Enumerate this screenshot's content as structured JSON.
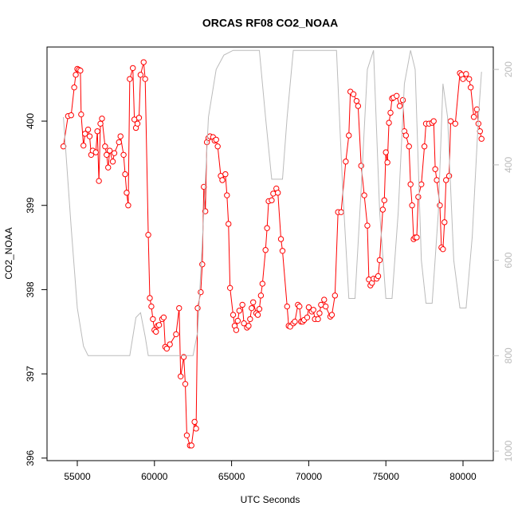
{
  "chart_data": {
    "type": "line",
    "title": "ORCAS RF08 CO2_NOAA",
    "xlabel": "UTC Seconds",
    "ylabel": "CO2_NOAA",
    "xlim": [
      53037,
      81963
    ],
    "xticks": [
      55000,
      60000,
      65000,
      70000,
      75000,
      80000
    ],
    "ylim": [
      395.97,
      400.88
    ],
    "yticks": [
      396,
      397,
      398,
      399,
      400
    ],
    "y2lim": [
      1020,
      153
    ],
    "y2ticks": [
      200,
      400,
      600,
      800,
      1000
    ],
    "y2color": "#bbbbbb",
    "series": [
      {
        "color": "#ff0000",
        "markers": true,
        "x": [
          54100,
          54400,
          54600,
          54800,
          54900,
          55000,
          55100,
          55200,
          55250,
          55400,
          55500,
          55700,
          55800,
          55900,
          56000,
          56200,
          56300,
          56400,
          56500,
          56600,
          56800,
          56900,
          57000,
          57100,
          57300,
          57400,
          57700,
          57800,
          58000,
          58100,
          58200,
          58300,
          58400,
          58600,
          58700,
          58800,
          58900,
          59000,
          59100,
          59300,
          59400,
          59600,
          59700,
          59800,
          59900,
          60000,
          60100,
          60200,
          60300,
          60500,
          60600,
          60700,
          60800,
          61000,
          61400,
          61600,
          61700,
          61900,
          62000,
          62100,
          62300,
          62400,
          62600,
          62700,
          62800,
          63000,
          63100,
          63200,
          63300,
          63400,
          63500,
          63600,
          63800,
          63900,
          64000,
          64100,
          64300,
          64400,
          64600,
          64700,
          64800,
          64900,
          65100,
          65200,
          65300,
          65400,
          65500,
          65700,
          65800,
          66000,
          66100,
          66200,
          66300,
          66400,
          66600,
          66700,
          66800,
          66900,
          67000,
          67200,
          67300,
          67400,
          67600,
          67700,
          67900,
          68000,
          68200,
          68300,
          68600,
          68700,
          68800,
          69000,
          69100,
          69300,
          69400,
          69500,
          69600,
          69700,
          69900,
          70000,
          70200,
          70300,
          70400,
          70600,
          70700,
          70800,
          71000,
          71100,
          71400,
          71500,
          71700,
          71900,
          72100,
          72400,
          72600,
          72700,
          72900,
          73100,
          73200,
          73400,
          73600,
          73800,
          73900,
          74000,
          74100,
          74200,
          74400,
          74500,
          74600,
          74800,
          74900,
          75000,
          75100,
          75200,
          75300,
          75400,
          75500,
          75700,
          75900,
          76100,
          76200,
          76300,
          76500,
          76600,
          76700,
          76800,
          76900,
          77000,
          77100,
          77300,
          77500,
          77600,
          77800,
          78000,
          78100,
          78200,
          78300,
          78500,
          78600,
          78700,
          78800,
          78900,
          79100,
          79200,
          79500,
          79800,
          79900,
          80000,
          80200,
          80400,
          80500,
          80700,
          80900,
          81000,
          81100,
          81200
        ],
        "values": [
          399.7,
          400.06,
          400.07,
          400.4,
          400.55,
          400.62,
          400.61,
          400.6,
          400.08,
          399.71,
          399.85,
          399.9,
          399.82,
          399.6,
          399.65,
          399.63,
          399.88,
          399.29,
          399.97,
          400.03,
          399.7,
          399.6,
          399.45,
          399.65,
          399.52,
          399.62,
          399.75,
          399.82,
          399.6,
          399.37,
          399.15,
          399.0,
          400.5,
          400.63,
          400.02,
          399.92,
          399.97,
          400.04,
          400.55,
          400.7,
          400.5,
          398.65,
          397.9,
          397.8,
          397.65,
          397.52,
          397.5,
          397.57,
          397.58,
          397.65,
          397.67,
          397.32,
          397.3,
          397.35,
          397.47,
          397.78,
          396.97,
          397.2,
          396.88,
          396.27,
          396.15,
          396.15,
          396.43,
          396.35,
          397.78,
          397.97,
          398.3,
          399.22,
          398.93,
          399.75,
          399.8,
          399.82,
          399.81,
          399.77,
          399.78,
          399.7,
          399.35,
          399.3,
          399.37,
          399.12,
          398.78,
          398.02,
          397.7,
          397.57,
          397.52,
          397.63,
          397.75,
          397.82,
          397.6,
          397.55,
          397.57,
          397.65,
          397.78,
          397.85,
          397.72,
          397.7,
          397.77,
          397.93,
          398.07,
          398.47,
          398.73,
          399.05,
          399.06,
          399.14,
          399.2,
          399.15,
          398.6,
          398.46,
          397.8,
          397.57,
          397.56,
          397.6,
          397.62,
          397.82,
          397.8,
          397.62,
          397.62,
          397.64,
          397.67,
          397.79,
          397.74,
          397.76,
          397.65,
          397.65,
          397.72,
          397.82,
          397.88,
          397.8,
          397.68,
          397.7,
          397.93,
          398.92,
          398.92,
          399.52,
          399.83,
          400.35,
          400.32,
          400.24,
          400.18,
          399.47,
          399.12,
          398.76,
          398.12,
          398.05,
          398.08,
          398.13,
          398.13,
          398.16,
          398.35,
          398.95,
          399.06,
          399.63,
          399.51,
          399.98,
          400.1,
          400.27,
          400.28,
          400.3,
          400.18,
          400.25,
          399.88,
          399.83,
          399.7,
          399.25,
          399.0,
          398.6,
          398.62,
          398.62,
          399.1,
          399.25,
          399.7,
          399.97,
          399.97,
          399.98,
          400.0,
          399.43,
          399.3,
          399.0,
          398.5,
          398.48,
          398.8,
          399.3,
          399.35,
          400.0,
          399.97,
          400.57,
          400.55,
          400.5,
          400.56,
          400.5,
          400.4,
          400.05,
          400.14,
          399.97,
          399.88,
          399.79
        ]
      },
      {
        "color": "#bbbbbb",
        "axis": "y2",
        "markers": false,
        "x": [
          54100,
          54600,
          55000,
          55400,
          55700,
          56000,
          57000,
          58400,
          58600,
          58800,
          59100,
          59400,
          59600,
          61000,
          62500,
          62800,
          63200,
          63500,
          64000,
          64500,
          65100,
          65600,
          66800,
          67200,
          67600,
          68300,
          68600,
          69000,
          71000,
          71800,
          72200,
          72600,
          73000,
          73400,
          73800,
          74200,
          74600,
          75000,
          75400,
          75800,
          76200,
          76600,
          76900,
          77300,
          77600,
          78000,
          78400,
          78700,
          79000,
          79400,
          79800,
          80200,
          80600,
          81000,
          81200
        ],
        "values": [
          300,
          530,
          700,
          780,
          800,
          800,
          800,
          800,
          760,
          720,
          710,
          760,
          800,
          800,
          800,
          750,
          500,
          300,
          200,
          170,
          160,
          160,
          160,
          300,
          430,
          430,
          300,
          160,
          160,
          160,
          450,
          680,
          680,
          450,
          200,
          160,
          500,
          680,
          680,
          500,
          230,
          160,
          200,
          600,
          690,
          690,
          500,
          230,
          300,
          600,
          700,
          700,
          550,
          300,
          205
        ]
      }
    ]
  }
}
